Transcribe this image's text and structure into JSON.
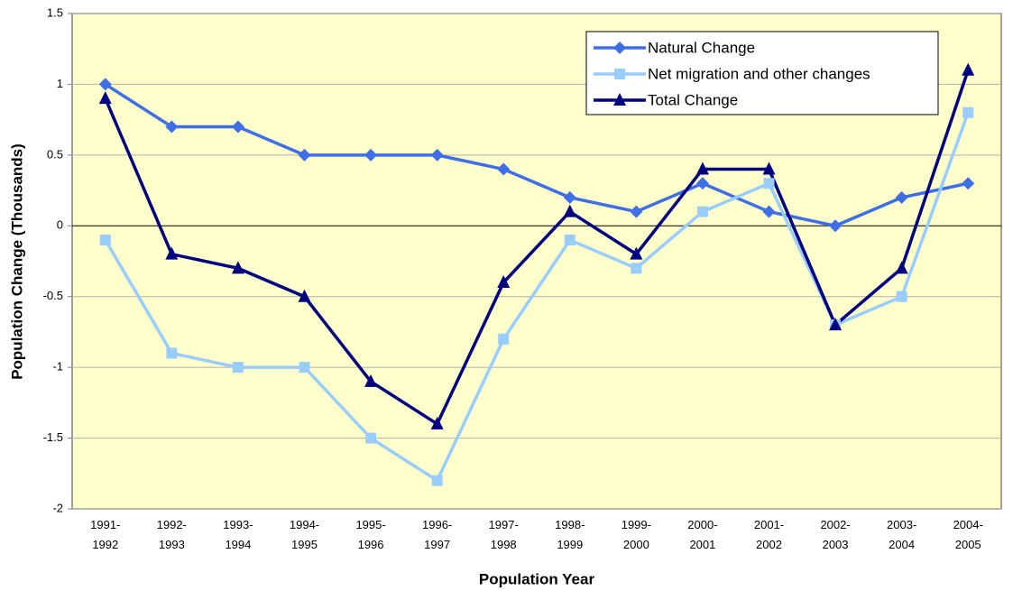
{
  "chart_data": {
    "type": "line",
    "x_label": "Population Year",
    "y_label": "Population Change (Thousands)",
    "categories": [
      "1991-1992",
      "1992-1993",
      "1993-1994",
      "1994-1995",
      "1995-1996",
      "1996-1997",
      "1997-1998",
      "1998-1999",
      "1999-2000",
      "2000-2001",
      "2001-2002",
      "2002-2003",
      "2003-2004",
      "2004-2005"
    ],
    "series": [
      {
        "name": "Natural Change",
        "color": "#3f6fe6",
        "marker": "diamond",
        "values": [
          1,
          0.7,
          0.7,
          0.5,
          0.5,
          0.5,
          0.4,
          0.2,
          0.1,
          0.3,
          0.1,
          0,
          0.2,
          0.3
        ]
      },
      {
        "name": "Net migration and other changes",
        "color": "#99ccff",
        "marker": "square",
        "values": [
          -0.1,
          -0.9,
          -1,
          -1,
          -1.5,
          -1.8,
          -0.8,
          -0.1,
          -0.3,
          0.1,
          0.3,
          -0.7,
          -0.5,
          0.8
        ]
      },
      {
        "name": "Total Change",
        "color": "#000080",
        "marker": "triangle",
        "values": [
          0.9,
          -0.2,
          -0.3,
          -0.5,
          -1.1,
          -1.4,
          -0.4,
          0.1,
          -0.2,
          0.4,
          0.4,
          -0.7,
          -0.3,
          1.1
        ]
      }
    ],
    "ylim": [
      -2,
      1.5
    ],
    "yticks": [
      1.5,
      1,
      0.5,
      0,
      -0.5,
      -1,
      -1.5,
      -2
    ],
    "grid": true,
    "legend": "top-right"
  }
}
